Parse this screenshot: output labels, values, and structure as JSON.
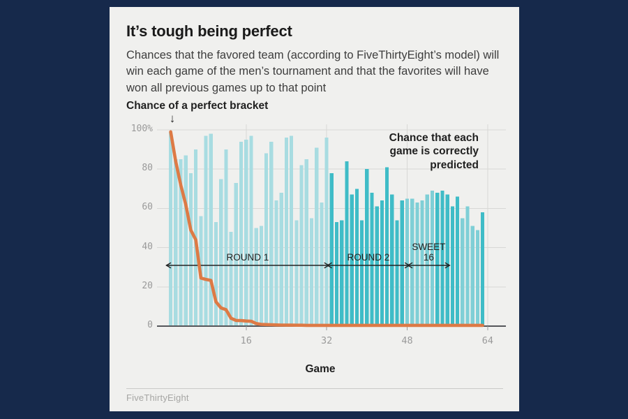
{
  "header": {
    "title": "It’s tough being perfect",
    "subtitle": "Chances that the favored team (according to FiveThirtyEight’s model) will win each game of the men’s tournament and that the favorites will have won all previous games up to that point"
  },
  "annotations": {
    "perfect_bracket_label": "Chance of a perfect bracket",
    "down_arrow": "↓",
    "each_game_label": "Chance that each game is correctly predicted",
    "rounds": [
      {
        "label": "ROUND 1",
        "from_game": 1,
        "to_game": 32
      },
      {
        "label": "ROUND 2",
        "from_game": 33,
        "to_game": 48
      },
      {
        "label": "SWEET\n16",
        "from_game": 49,
        "to_game": 56
      }
    ]
  },
  "chart_data": {
    "type": "bar",
    "title": "It’s tough being perfect",
    "xlabel": "Game",
    "xlim": [
      0,
      64
    ],
    "ylim": [
      0,
      100
    ],
    "grid": true,
    "x_ticks": [
      16,
      32,
      48,
      64
    ],
    "y_ticks": [
      "100%",
      "80",
      "60",
      "40",
      "20",
      "0"
    ],
    "y_tick_values": [
      100,
      80,
      60,
      40,
      20,
      0
    ],
    "series": [
      {
        "name": "Chance that each game is correctly predicted",
        "type": "bar",
        "values": [
          99,
          85,
          85,
          87,
          78,
          90,
          56,
          97,
          98,
          53,
          75,
          90,
          48,
          73,
          94,
          95,
          97,
          50,
          51,
          88,
          94,
          64,
          68,
          96,
          97,
          54,
          82,
          85,
          55,
          91,
          63,
          96,
          78,
          53,
          54,
          84,
          67,
          70,
          54,
          80,
          68,
          61,
          64,
          81,
          67,
          54,
          64,
          65,
          65,
          63,
          64,
          67,
          69,
          68,
          69,
          67,
          61,
          66,
          55,
          61,
          51,
          49,
          58
        ]
      },
      {
        "name": "Chance of a perfect bracket",
        "type": "line",
        "values": [
          99,
          84,
          72,
          62,
          49,
          44,
          24.5,
          23.8,
          23.3,
          12.4,
          9.3,
          8.4,
          4,
          2.9,
          2.8,
          2.6,
          2.5,
          1.3,
          0.9,
          0.8,
          0.7,
          0.6,
          0.55,
          0.5,
          0.5,
          0.45,
          0.45,
          0.4,
          0.4,
          0.4,
          0.4,
          0.4,
          0.4,
          0.4,
          0.4,
          0.4,
          0.4,
          0.4,
          0.4,
          0.4,
          0.4,
          0.4,
          0.4,
          0.4,
          0.4,
          0.4,
          0.4,
          0.4,
          0.4,
          0.4,
          0.4,
          0.4,
          0.4,
          0.4,
          0.4,
          0.4,
          0.4,
          0.4,
          0.4,
          0.4,
          0.4,
          0.4,
          0.4
        ]
      }
    ],
    "bar_shades": [
      "l",
      "l",
      "l",
      "l",
      "l",
      "l",
      "l",
      "l",
      "l",
      "l",
      "l",
      "l",
      "l",
      "l",
      "l",
      "l",
      "l",
      "l",
      "l",
      "l",
      "l",
      "l",
      "l",
      "l",
      "l",
      "l",
      "l",
      "l",
      "l",
      "l",
      "l",
      "l",
      "d",
      "d",
      "d",
      "d",
      "d",
      "d",
      "d",
      "d",
      "d",
      "d",
      "d",
      "d",
      "d",
      "d",
      "d",
      "m",
      "m",
      "m",
      "m",
      "m",
      "m",
      "d",
      "d",
      "d",
      "d",
      "d",
      "m",
      "m",
      "m",
      "m",
      "d"
    ],
    "colors": {
      "bar_light": "#a8dce1",
      "bar_medium": "#7fcfd6",
      "bar_dark": "#3fbcc7",
      "line": "#dd7a45",
      "grid": "#d8d8d5",
      "axis": "#55565a",
      "background": "#f0f0ee",
      "page_background": "#16294b"
    }
  },
  "footer": {
    "source": "FiveThirtyEight"
  }
}
